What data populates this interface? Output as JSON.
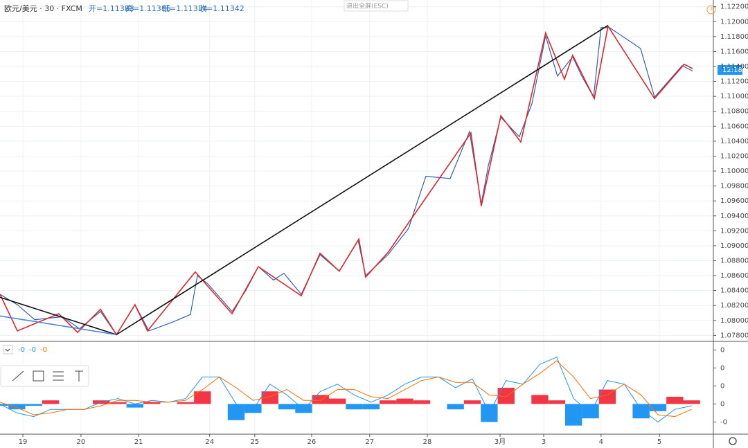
{
  "header": {
    "symbol": "欧元/美元 · 30 · FXCM",
    "open": "开=1.11383",
    "high": "高=1.11386",
    "low": "低=1.11334",
    "close": "收=1.11342",
    "exit_fullscreen": "退出全屏(ESC)",
    "price_tag": "12:18",
    "indicator_values": [
      "-0",
      "-0",
      "-0"
    ]
  },
  "chart_data": [
    {
      "type": "line",
      "xlim": [
        0,
        296
      ],
      "ylim": [
        1.0772,
        1.1229
      ],
      "yticks": [
        {
          "value": 1.078,
          "label": "1.07800"
        },
        {
          "value": 1.08,
          "label": "1.08000"
        },
        {
          "value": 1.082,
          "label": "1.08200"
        },
        {
          "value": 1.084,
          "label": "1.08400"
        },
        {
          "value": 1.086,
          "label": "1.08600"
        },
        {
          "value": 1.088,
          "label": "1.08800"
        },
        {
          "value": 1.09,
          "label": "1.09000"
        },
        {
          "value": 1.092,
          "label": "1.09200"
        },
        {
          "value": 1.094,
          "label": "1.09400"
        },
        {
          "value": 1.096,
          "label": "1.09600"
        },
        {
          "value": 1.098,
          "label": "1.09800"
        },
        {
          "value": 1.1,
          "label": "1.10000"
        },
        {
          "value": 1.102,
          "label": "1.10200"
        },
        {
          "value": 1.104,
          "label": "1.10400"
        },
        {
          "value": 1.106,
          "label": "1.10600"
        },
        {
          "value": 1.108,
          "label": "1.10800"
        },
        {
          "value": 1.11,
          "label": "1.11000"
        },
        {
          "value": 1.112,
          "label": "1.11200"
        },
        {
          "value": 1.114,
          "label": "1.11400"
        },
        {
          "value": 1.116,
          "label": "1.11600"
        },
        {
          "value": 1.118,
          "label": "1.11800"
        },
        {
          "value": 1.12,
          "label": "1.12000"
        },
        {
          "value": 1.122,
          "label": "1.12200"
        }
      ],
      "grid": true,
      "series": [
        {
          "color": "#2f5fb3",
          "x": [
            0,
            7.2,
            14.4,
            25.9,
            33,
            41.7,
            48.3,
            56,
            61.8,
            71.8,
            79,
            81.9,
            86.2,
            96.3,
            102,
            107.2,
            113.5,
            117.8,
            125,
            132.8,
            140.8,
            148.6,
            151.7,
            161,
            169.5,
            176.7,
            186.8,
            194.8,
            199.7,
            202.6,
            207.8,
            215.5,
            220.7,
            226.4,
            231.3,
            237.6,
            241.4,
            246.3,
            249.4,
            252.9,
            265.8,
            271.6,
            283,
            287.4
          ],
          "values": [
            1.0835,
            1.0821,
            1.0801,
            1.0805,
            1.0789,
            1.0812,
            1.0781,
            1.0821,
            1.0786,
            1.0798,
            1.0808,
            1.086,
            1.0849,
            1.0812,
            1.084,
            1.0872,
            1.0854,
            1.0863,
            1.0835,
            1.0888,
            1.0866,
            1.0907,
            1.086,
            1.0888,
            1.0923,
            1.0993,
            1.099,
            1.1053,
            1.0956,
            1.1007,
            1.1072,
            1.1046,
            1.109,
            1.1181,
            1.1127,
            1.1153,
            1.1127,
            1.1099,
            1.1192,
            1.1192,
            1.1164,
            1.1099,
            1.1141,
            1.1134
          ]
        },
        {
          "color": "#e0262b",
          "x": [
            0,
            7.2,
            24.4,
            32.2,
            41.7,
            48.3,
            56,
            61.2,
            81,
            96.3,
            107.2,
            125,
            132.8,
            140.8,
            148.9,
            151.7,
            161,
            195.4,
            199.7,
            207.8,
            216.1,
            226.4,
            234.2,
            237.6,
            246.6,
            252.3,
            271.6,
            283.9,
            287.4
          ],
          "values": [
            1.0835,
            1.0786,
            1.0809,
            1.0784,
            1.0815,
            1.0781,
            1.0821,
            1.0786,
            1.0865,
            1.0809,
            1.0872,
            1.0833,
            1.089,
            1.0866,
            1.0909,
            1.0858,
            1.0891,
            1.1051,
            1.0953,
            1.1074,
            1.1039,
            1.1185,
            1.1123,
            1.1155,
            1.1097,
            1.1194,
            1.1097,
            1.1143,
            1.1137
          ]
        },
        {
          "color": "#111111",
          "x": [
            0,
            48.3,
            252.3
          ],
          "values": [
            1.0831,
            1.0781,
            1.1195
          ]
        },
        {
          "color": "#4a86d8",
          "x": [
            0,
            48.3
          ],
          "values": [
            1.0806,
            1.0781
          ]
        }
      ]
    },
    {
      "type": "macd",
      "xlim": [
        0,
        296
      ],
      "ylim": [
        -0.0016,
        0.0034
      ],
      "yticks": [
        {
          "value": 0.003,
          "label": "0"
        },
        {
          "value": 0.002,
          "label": "0"
        },
        {
          "value": 0.001,
          "label": "0"
        },
        {
          "value": 0,
          "label": "0"
        },
        {
          "value": -0.001,
          "label": "-0"
        }
      ],
      "xticks": [
        {
          "value": 9.5,
          "label": "19"
        },
        {
          "value": 33.6,
          "label": "20"
        },
        {
          "value": 57.5,
          "label": "21"
        },
        {
          "value": 87,
          "label": "24"
        },
        {
          "value": 105.7,
          "label": "25"
        },
        {
          "value": 129.3,
          "label": "26"
        },
        {
          "value": 153.4,
          "label": "27"
        },
        {
          "value": 177.3,
          "label": "28"
        },
        {
          "value": 207.5,
          "label": "3月"
        },
        {
          "value": 225.6,
          "label": "3"
        },
        {
          "value": 249.4,
          "label": "4"
        },
        {
          "value": 273.6,
          "label": "5"
        }
      ],
      "x": [
        0,
        7,
        14,
        21,
        28,
        35,
        42,
        49,
        56,
        63,
        70,
        77,
        84,
        91,
        98,
        105,
        112,
        119,
        126,
        133,
        140,
        147,
        154,
        161,
        168,
        175,
        182,
        189,
        196,
        203,
        210,
        217,
        224,
        231,
        238,
        245,
        252,
        259,
        266,
        273,
        280,
        287
      ],
      "histogram": {
        "pos_color": "#f23645",
        "neg_color": "#2196f3",
        "values": [
          -0.0001,
          -0.0003,
          -0.0001,
          0.0002,
          0,
          0,
          0.0002,
          0.0001,
          -0.0002,
          0.0001,
          0,
          0.0001,
          0.0007,
          0,
          -0.0009,
          -0.0005,
          0.0007,
          -0.0003,
          -0.0005,
          0.0005,
          0.0003,
          -0.0003,
          -0.0003,
          0.0002,
          0.0003,
          0.0002,
          0,
          -0.0003,
          0.0002,
          -0.001,
          0.0009,
          0,
          0.0005,
          0.0002,
          -0.0012,
          -0.0008,
          0.0008,
          0,
          -0.0008,
          -0.0004,
          0.0004,
          0.0002
        ]
      },
      "series": [
        {
          "color": "#2196f3",
          "values": [
            0,
            -0.0005,
            -0.0007,
            -0.0003,
            -0.0003,
            -0.0003,
            0.0001,
            0.0003,
            0,
            0.0002,
            0.0001,
            0.0003,
            0.0015,
            0.0015,
            0,
            -0.0003,
            0.0011,
            0.0005,
            -0.0003,
            0.0007,
            0.0011,
            0.0005,
            0.0001,
            0.0005,
            0.0011,
            0.0015,
            0.0015,
            0.0009,
            0.0014,
            -0.0005,
            0.0013,
            0.0011,
            0.0022,
            0.0026,
            0.0003,
            -0.0005,
            0.0013,
            0.0011,
            -0.0003,
            -0.001,
            -0.0003,
            -0.0001
          ]
        },
        {
          "color": "#ff6d00",
          "values": [
            0.0001,
            -0.0002,
            -0.0006,
            -0.0005,
            -0.0003,
            -0.0003,
            -0.0001,
            0.0002,
            0.0002,
            0.0001,
            0.0001,
            0.0002,
            0.0008,
            0.0015,
            0.0009,
            0.0002,
            0.0004,
            0.0008,
            0.0002,
            0.0002,
            0.0008,
            0.0008,
            0.0004,
            0.0003,
            0.0008,
            0.0013,
            0.0015,
            0.0012,
            0.0012,
            0.0005,
            0.0004,
            0.0011,
            0.0017,
            0.0024,
            0.0015,
            0.0003,
            0.0005,
            0.0011,
            0.0005,
            -0.0006,
            -0.0007,
            -0.0003
          ]
        }
      ]
    }
  ]
}
